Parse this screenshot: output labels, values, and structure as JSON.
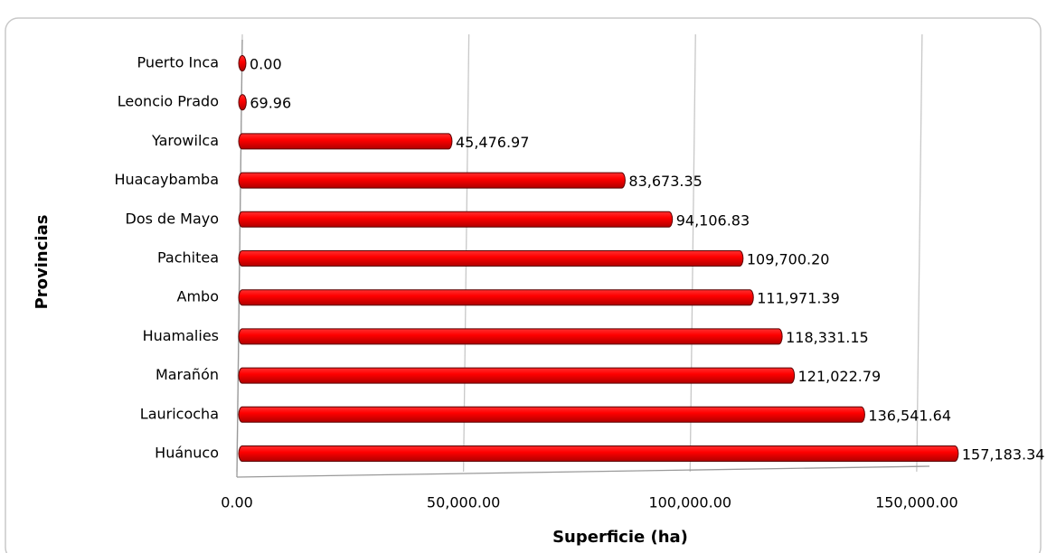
{
  "chart_data": {
    "type": "hbar",
    "categories": [
      "Puerto Inca",
      "Leoncio Prado",
      "Yarowilca",
      "Huacaybamba",
      "Dos de Mayo",
      "Pachitea",
      "Ambo",
      "Huamalies",
      "Marañón",
      "Lauricocha",
      "Huánuco"
    ],
    "values": [
      0.0,
      69.96,
      45476.97,
      83673.35,
      94106.83,
      109700.2,
      111971.39,
      118331.15,
      121022.79,
      136541.64,
      157183.34
    ],
    "value_labels": [
      "0.00",
      "69.96",
      "45,476.97",
      "83,673.35",
      "94,106.83",
      "109,700.20",
      "111,971.39",
      "118,331.15",
      "121,022.79",
      "136,541.64",
      "157,183.34"
    ],
    "color": "#ff0000",
    "xlabel": "Superficie (ha)",
    "ylabel": "Provincias",
    "xlim": [
      0,
      160000
    ],
    "xticks": [
      {
        "value": 0,
        "label": "0.00"
      },
      {
        "value": 50000,
        "label": "50,000.00"
      },
      {
        "value": 100000,
        "label": "100,000.00"
      },
      {
        "value": 150000,
        "label": "150,000.00"
      }
    ],
    "grid": true
  }
}
